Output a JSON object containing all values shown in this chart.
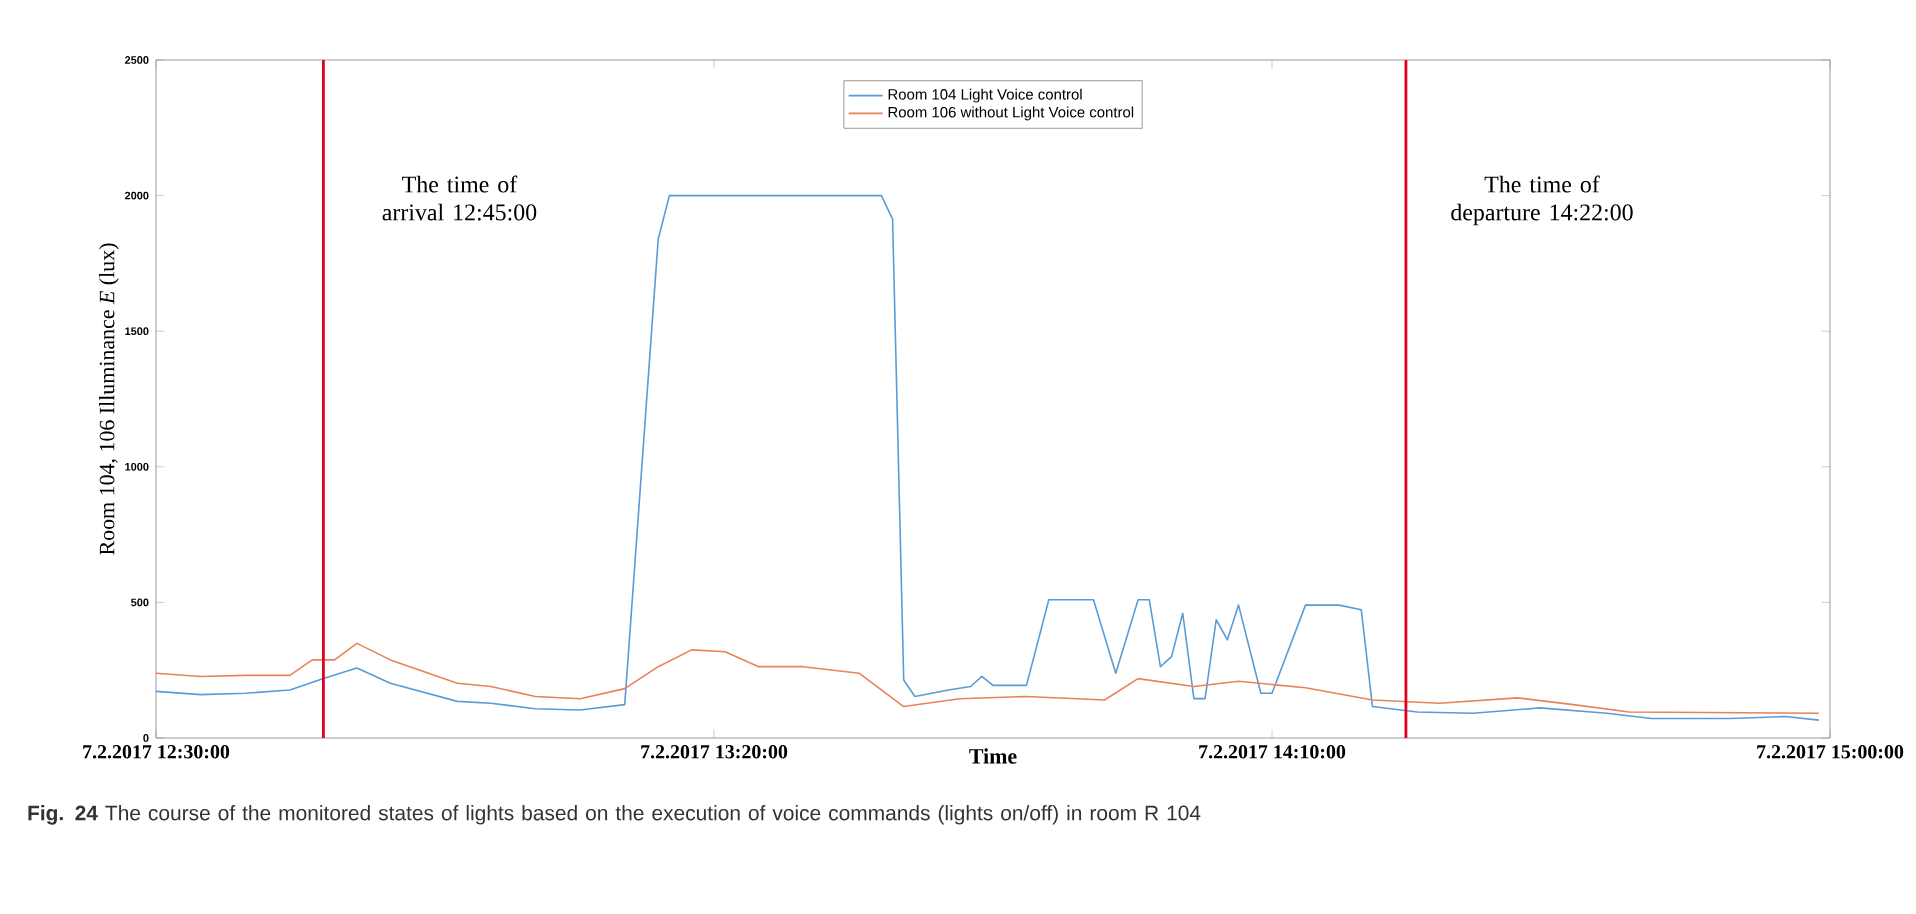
{
  "chart_data": {
    "type": "line",
    "xlabel": "Time",
    "ylabel": "Room 104, 106 Illuminance *E* (lux)",
    "xlim": [
      "2017-02-07T12:30",
      "2017-02-07T15:00"
    ],
    "ylim": [
      0,
      2500
    ],
    "xticks": [
      {
        "value": "2017-02-07T12:30",
        "label": "7.2.2017 12:30:00"
      },
      {
        "value": "2017-02-07T13:20",
        "label": "7.2.2017 13:20:00"
      },
      {
        "value": "2017-02-07T14:10",
        "label": "7.2.2017 14:10:00"
      },
      {
        "value": "2017-02-07T15:00",
        "label": "7.2.2017 15:00:00"
      }
    ],
    "yticks": [
      0,
      500,
      1000,
      1500,
      2000,
      2500
    ],
    "legend": "top",
    "grid": false,
    "marker": "none",
    "line_style": "solid",
    "series": [
      {
        "name": "Room 104 Light Voice control",
        "color": "#5b9bd5",
        "x": [
          "2017-02-07T12:30",
          "2017-02-07T12:34",
          "2017-02-07T12:38",
          "2017-02-07T12:42",
          "2017-02-07T12:45",
          "2017-02-07T12:48",
          "2017-02-07T12:51",
          "2017-02-07T12:57",
          "2017-02-07T13:00",
          "2017-02-07T13:04",
          "2017-02-07T13:08",
          "2017-02-07T13:12",
          "2017-02-07T13:15",
          "2017-02-07T13:16",
          "2017-02-07T13:35",
          "2017-02-07T13:36",
          "2017-02-07T13:37",
          "2017-02-07T13:38",
          "2017-02-07T13:41",
          "2017-02-07T13:43",
          "2017-02-07T13:44",
          "2017-02-07T13:45",
          "2017-02-07T13:48",
          "2017-02-07T13:50",
          "2017-02-07T13:54",
          "2017-02-07T13:56",
          "2017-02-07T13:58",
          "2017-02-07T13:59",
          "2017-02-07T14:00",
          "2017-02-07T14:01",
          "2017-02-07T14:02",
          "2017-02-07T14:03",
          "2017-02-07T14:04",
          "2017-02-07T14:05",
          "2017-02-07T14:06",
          "2017-02-07T14:07",
          "2017-02-07T14:09",
          "2017-02-07T14:10",
          "2017-02-07T14:13",
          "2017-02-07T14:16",
          "2017-02-07T14:18",
          "2017-02-07T14:19",
          "2017-02-07T14:23",
          "2017-02-07T14:28",
          "2017-02-07T14:34",
          "2017-02-07T14:40",
          "2017-02-07T14:44",
          "2017-02-07T14:51",
          "2017-02-07T14:56",
          "2017-02-07T14:59"
        ],
        "values": [
          172,
          160,
          165,
          177,
          219,
          258,
          202,
          135,
          128,
          108,
          103,
          123,
          1839,
          2000,
          2000,
          1913,
          214,
          153,
          177,
          190,
          227,
          194,
          194,
          510,
          510,
          239,
          510,
          510,
          263,
          300,
          460,
          145,
          145,
          436,
          362,
          490,
          165,
          165,
          490,
          490,
          473,
          116,
          96,
          91,
          111,
          91,
          72,
          72,
          79,
          66
        ]
      },
      {
        "name": "Room 106 without Light Voice control",
        "color": "#e8825a",
        "x": [
          "2017-02-07T12:30",
          "2017-02-07T12:34",
          "2017-02-07T12:38",
          "2017-02-07T12:42",
          "2017-02-07T12:44",
          "2017-02-07T12:46",
          "2017-02-07T12:48",
          "2017-02-07T12:51",
          "2017-02-07T12:57",
          "2017-02-07T13:00",
          "2017-02-07T13:04",
          "2017-02-07T13:08",
          "2017-02-07T13:12",
          "2017-02-07T13:15",
          "2017-02-07T13:18",
          "2017-02-07T13:21",
          "2017-02-07T13:24",
          "2017-02-07T13:28",
          "2017-02-07T13:33",
          "2017-02-07T13:37",
          "2017-02-07T13:42",
          "2017-02-07T13:48",
          "2017-02-07T13:55",
          "2017-02-07T13:58",
          "2017-02-07T14:03",
          "2017-02-07T14:07",
          "2017-02-07T14:13",
          "2017-02-07T14:19",
          "2017-02-07T14:25",
          "2017-02-07T14:32",
          "2017-02-07T14:37",
          "2017-02-07T14:42",
          "2017-02-07T14:59"
        ],
        "values": [
          239,
          227,
          231,
          231,
          288,
          288,
          349,
          288,
          202,
          190,
          153,
          145,
          182,
          263,
          325,
          318,
          263,
          263,
          239,
          116,
          145,
          153,
          140,
          219,
          190,
          209,
          185,
          140,
          128,
          148,
          123,
          96,
          91
        ]
      }
    ],
    "ref_lines": [
      {
        "axis": "x",
        "value": "2017-02-07T12:45",
        "label": "The time of arrival 12:45:00",
        "color": "#e0001b"
      },
      {
        "axis": "x",
        "value": "2017-02-07T14:22",
        "label": "The time of departure 14:22:00",
        "color": "#e0001b"
      }
    ],
    "annotations": [
      "**Fig. 24** The course of the monitored states of lights based on the execution of voice commands (lights on/off) in room R 104"
    ]
  }
}
